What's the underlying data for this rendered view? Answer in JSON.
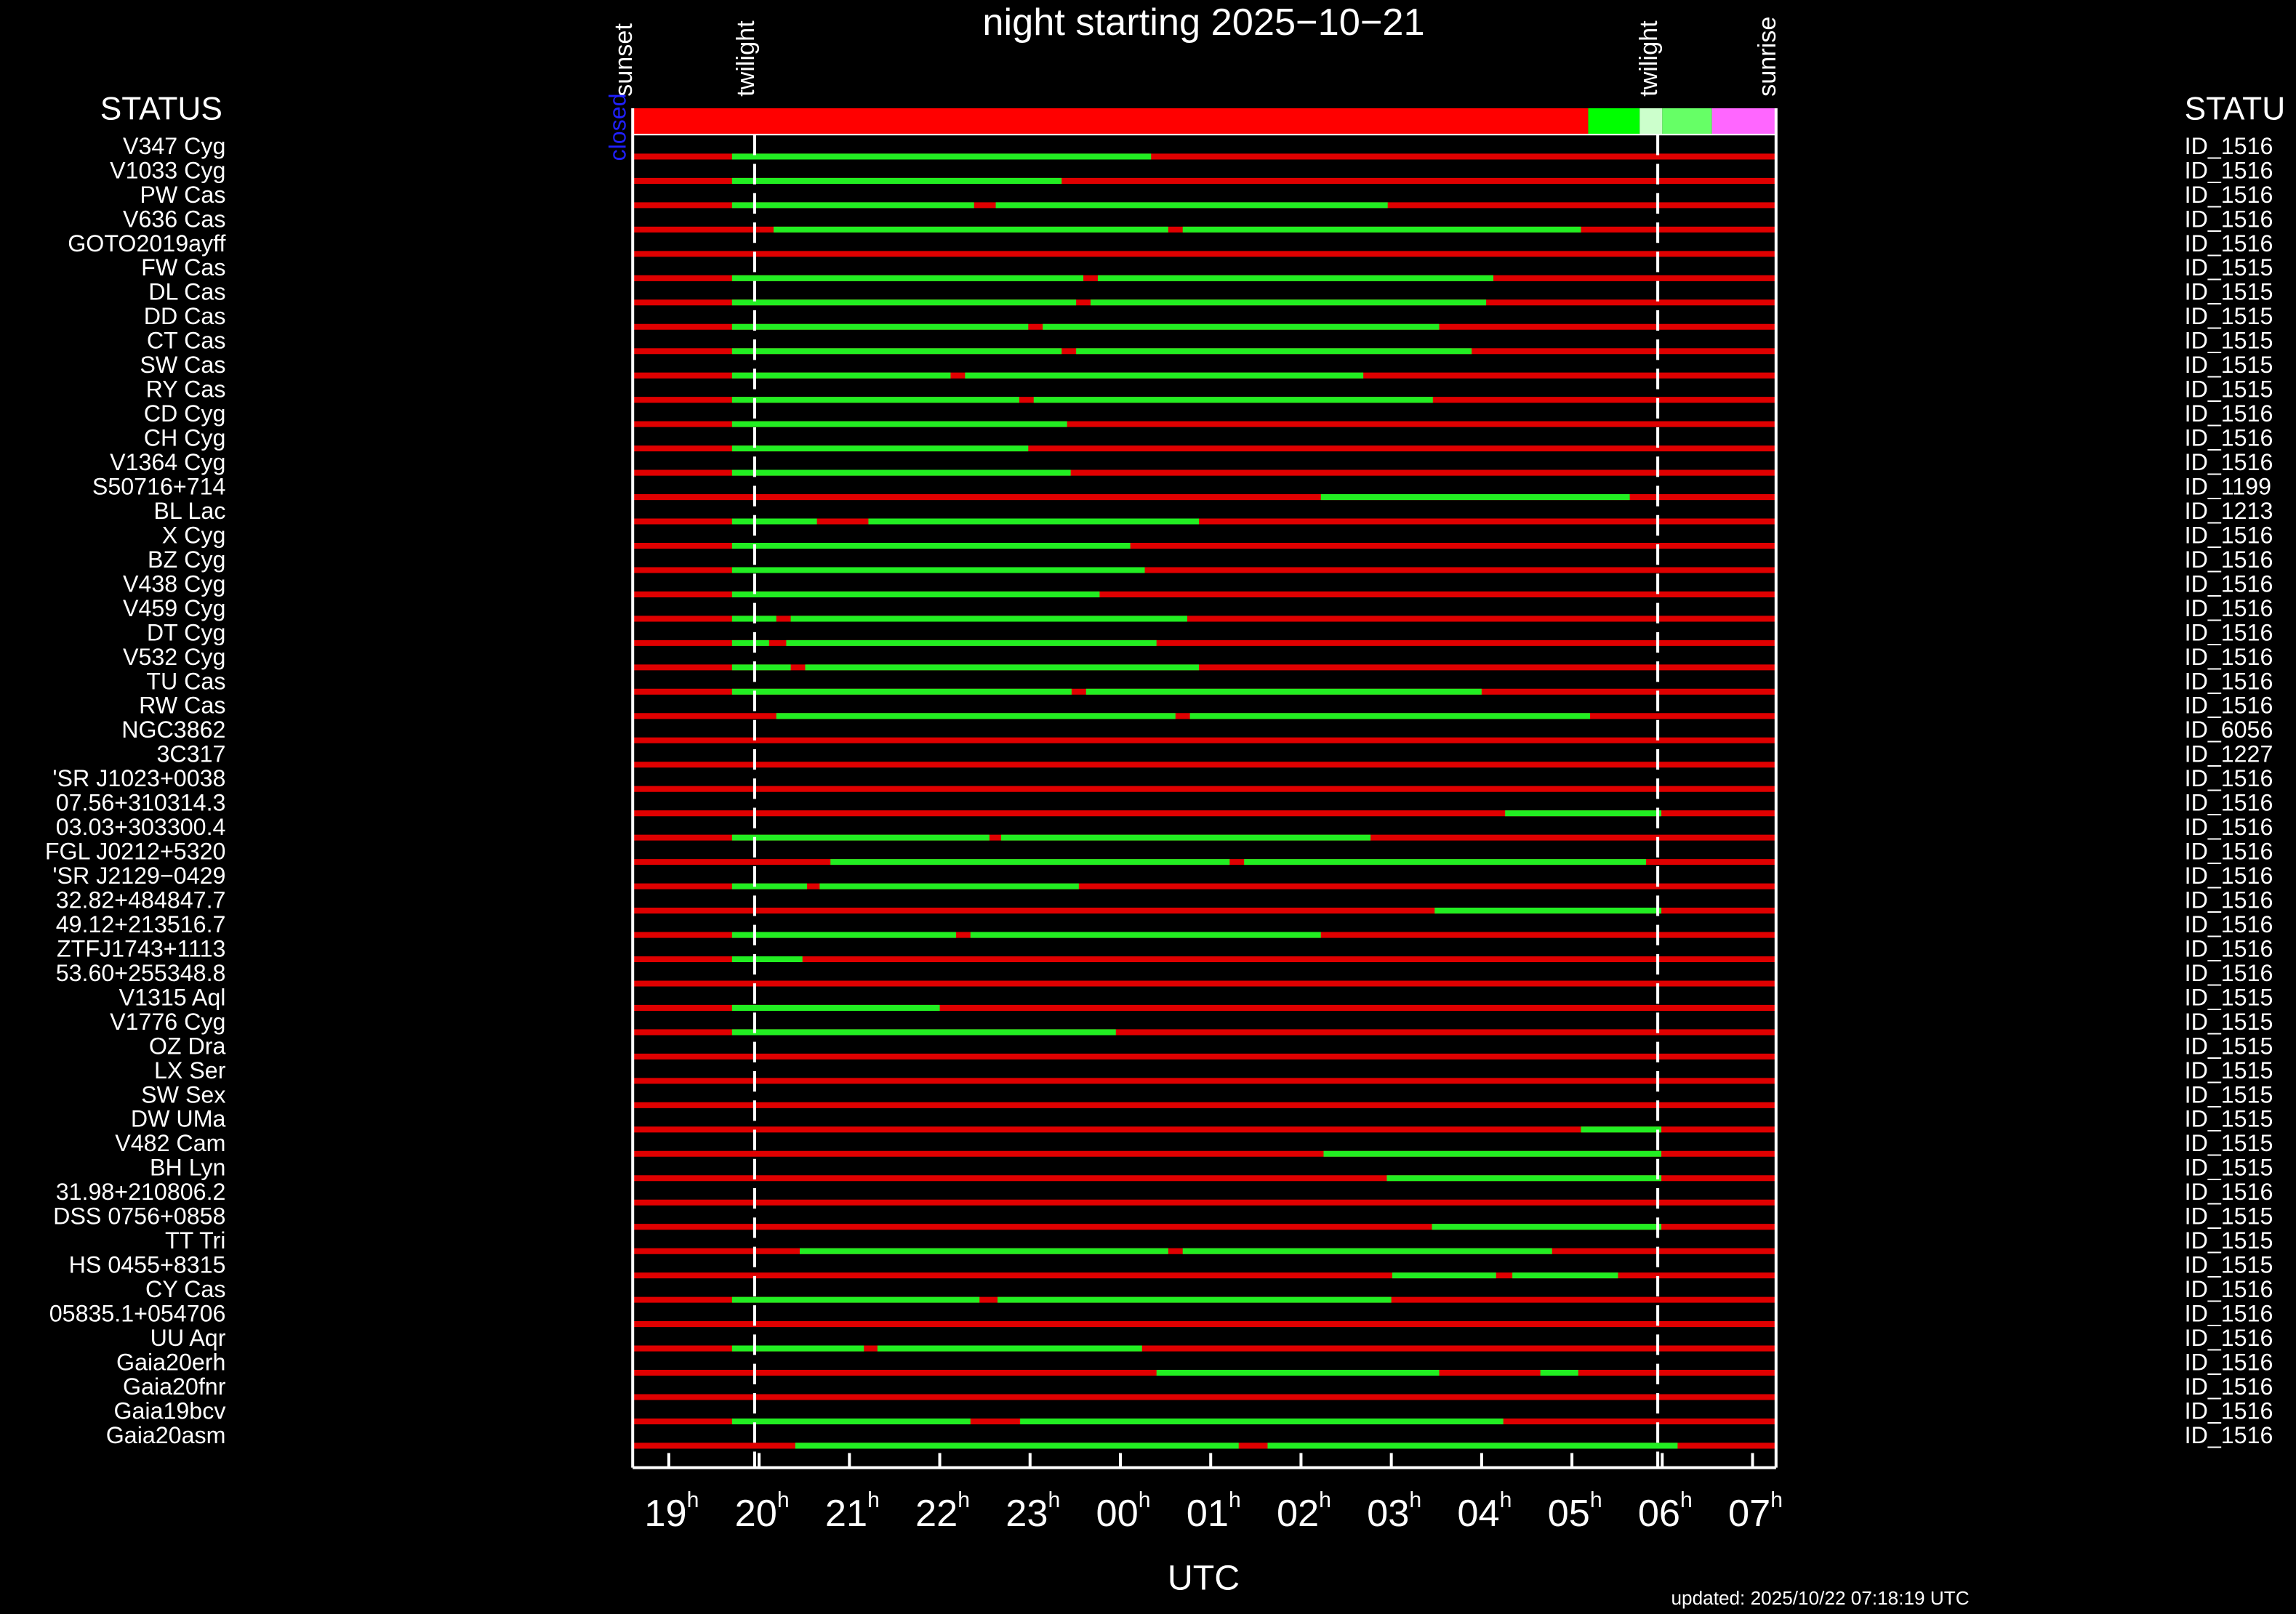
{
  "chart_data": {
    "type": "timeline",
    "title": "night starting 2025−10−21",
    "left_header": "STATUS",
    "right_header": "STATU",
    "x_label": "UTC",
    "footer": "updated: 2025/10/22 07:18:19 UTC",
    "xlim": [
      18.6,
      31.26
    ],
    "tick_suffix": "h",
    "xticks": [
      19,
      20,
      21,
      22,
      23,
      {
        "value": 24,
        "label": "00"
      },
      {
        "value": 25,
        "label": "01"
      },
      {
        "value": 26,
        "label": "02"
      },
      {
        "value": 27,
        "label": "03"
      },
      {
        "value": 28,
        "label": "04"
      },
      {
        "value": 29,
        "label": "05"
      },
      {
        "value": 30,
        "label": "06"
      },
      {
        "value": 31,
        "label": "07"
      }
    ],
    "events": [
      {
        "name": "sunset",
        "x": 18.6
      },
      {
        "name": "twilight",
        "x": 19.95
      },
      {
        "name": "twilight",
        "x": 29.95
      },
      {
        "name": "sunrise",
        "x": 31.26
      }
    ],
    "status_labels": [
      {
        "name": "closed",
        "x": 18.55
      }
    ],
    "status_bar": [
      {
        "start": 18.6,
        "end": 29.18,
        "color": "#ff0000"
      },
      {
        "start": 29.18,
        "end": 29.75,
        "color": "#00ff00"
      },
      {
        "start": 29.75,
        "end": 30.0,
        "color": "#ccffcc"
      },
      {
        "start": 30.0,
        "end": 30.55,
        "color": "#66ff66"
      },
      {
        "start": 30.55,
        "end": 31.26,
        "color": "#ff66ff"
      }
    ],
    "off_color": "#e00000",
    "on_color": "#22ee22",
    "rows": [
      {
        "name": "V347 Cyg",
        "id": "ID_1516",
        "green": [
          [
            19.7,
            24.34
          ]
        ]
      },
      {
        "name": "V1033 Cyg",
        "id": "ID_1516",
        "green": [
          [
            19.7,
            23.35
          ]
        ]
      },
      {
        "name": "PW Cas",
        "id": "ID_1516",
        "green": [
          [
            19.7,
            22.38
          ],
          [
            22.62,
            26.96
          ]
        ]
      },
      {
        "name": "V636 Cas",
        "id": "ID_1516",
        "green": [
          [
            20.16,
            24.53
          ],
          [
            24.69,
            29.1
          ]
        ]
      },
      {
        "name": "GOTO2019ayff",
        "id": "ID_1516",
        "green": []
      },
      {
        "name": "FW Cas",
        "id": "ID_1515",
        "green": [
          [
            19.7,
            23.59
          ],
          [
            23.75,
            28.13
          ]
        ]
      },
      {
        "name": "DL Cas",
        "id": "ID_1515",
        "green": [
          [
            19.7,
            23.51
          ],
          [
            23.67,
            28.05
          ]
        ]
      },
      {
        "name": "DD Cas",
        "id": "ID_1515",
        "green": [
          [
            19.7,
            22.98
          ],
          [
            23.14,
            27.53
          ]
        ]
      },
      {
        "name": "CT Cas",
        "id": "ID_1515",
        "green": [
          [
            19.7,
            23.35
          ],
          [
            23.51,
            27.89
          ]
        ]
      },
      {
        "name": "SW Cas",
        "id": "ID_1515",
        "green": [
          [
            19.7,
            22.12
          ],
          [
            22.28,
            26.69
          ]
        ]
      },
      {
        "name": "RY Cas",
        "id": "ID_1515",
        "green": [
          [
            19.7,
            22.88
          ],
          [
            23.04,
            27.46
          ]
        ]
      },
      {
        "name": "CD Cyg",
        "id": "ID_1516",
        "green": [
          [
            19.7,
            23.41
          ]
        ]
      },
      {
        "name": "CH Cyg",
        "id": "ID_1516",
        "green": [
          [
            19.7,
            22.98
          ]
        ]
      },
      {
        "name": "V1364 Cyg",
        "id": "ID_1516",
        "green": [
          [
            19.7,
            23.45
          ]
        ]
      },
      {
        "name": "S50716+714",
        "id": "ID_1199",
        "green": [
          [
            26.22,
            29.64
          ]
        ]
      },
      {
        "name": "BL Lac",
        "id": "ID_1213",
        "green": [
          [
            19.7,
            20.64
          ],
          [
            21.21,
            24.87
          ]
        ]
      },
      {
        "name": "X Cyg",
        "id": "ID_1516",
        "green": [
          [
            19.7,
            24.11
          ]
        ]
      },
      {
        "name": "BZ Cyg",
        "id": "ID_1516",
        "green": [
          [
            19.7,
            24.27
          ]
        ]
      },
      {
        "name": "V438 Cyg",
        "id": "ID_1516",
        "green": [
          [
            19.7,
            23.77
          ]
        ]
      },
      {
        "name": "V459 Cyg",
        "id": "ID_1516",
        "green": [
          [
            19.7,
            20.19
          ],
          [
            20.35,
            24.74
          ]
        ]
      },
      {
        "name": "DT Cyg",
        "id": "ID_1516",
        "green": [
          [
            19.7,
            20.11
          ],
          [
            20.3,
            24.4
          ]
        ]
      },
      {
        "name": "V532 Cyg",
        "id": "ID_1516",
        "green": [
          [
            19.7,
            20.35
          ],
          [
            20.51,
            24.87
          ]
        ]
      },
      {
        "name": "TU Cas",
        "id": "ID_1516",
        "green": [
          [
            19.7,
            23.46
          ],
          [
            23.62,
            28.0
          ]
        ]
      },
      {
        "name": "RW Cas",
        "id": "ID_1516",
        "green": [
          [
            20.19,
            24.61
          ],
          [
            24.77,
            29.2
          ]
        ]
      },
      {
        "name": "NGC3862",
        "id": "ID_6056",
        "green": []
      },
      {
        "name": "3C317",
        "id": "ID_1227",
        "green": []
      },
      {
        "name": "'SR J1023+0038",
        "id": "ID_1516",
        "green": []
      },
      {
        "name": "07.56+310314.3",
        "id": "ID_1516",
        "green": [
          [
            28.26,
            29.99
          ]
        ]
      },
      {
        "name": "03.03+303300.4",
        "id": "ID_1516",
        "green": [
          [
            19.7,
            22.55
          ],
          [
            22.68,
            26.77
          ]
        ]
      },
      {
        "name": "FGL J0212+5320",
        "id": "ID_1516",
        "green": [
          [
            20.79,
            25.21
          ],
          [
            25.37,
            29.82
          ]
        ]
      },
      {
        "name": "'SR J2129−0429",
        "id": "ID_1516",
        "green": [
          [
            19.7,
            20.53
          ],
          [
            20.67,
            23.54
          ]
        ]
      },
      {
        "name": "32.82+484847.7",
        "id": "ID_1516",
        "green": [
          [
            27.48,
            29.99
          ]
        ]
      },
      {
        "name": "49.12+213516.7",
        "id": "ID_1516",
        "green": [
          [
            19.7,
            22.18
          ],
          [
            22.34,
            26.22
          ]
        ]
      },
      {
        "name": "ZTFJ1743+1113",
        "id": "ID_1516",
        "green": [
          [
            19.7,
            20.48
          ]
        ]
      },
      {
        "name": "53.60+255348.8",
        "id": "ID_1516",
        "green": []
      },
      {
        "name": "V1315 Aql",
        "id": "ID_1515",
        "green": [
          [
            19.7,
            22.0
          ]
        ]
      },
      {
        "name": "V1776 Cyg",
        "id": "ID_1515",
        "green": [
          [
            19.7,
            23.95
          ]
        ]
      },
      {
        "name": "OZ Dra",
        "id": "ID_1515",
        "green": []
      },
      {
        "name": "LX Ser",
        "id": "ID_1515",
        "green": []
      },
      {
        "name": "SW Sex",
        "id": "ID_1515",
        "green": []
      },
      {
        "name": "DW UMa",
        "id": "ID_1515",
        "green": [
          [
            29.1,
            29.99
          ]
        ]
      },
      {
        "name": "V482 Cam",
        "id": "ID_1515",
        "green": [
          [
            26.25,
            29.99
          ]
        ]
      },
      {
        "name": "BH Lyn",
        "id": "ID_1515",
        "green": [
          [
            26.95,
            29.99
          ]
        ]
      },
      {
        "name": "31.98+210806.2",
        "id": "ID_1516",
        "green": []
      },
      {
        "name": "DSS 0756+0858",
        "id": "ID_1515",
        "green": [
          [
            27.45,
            29.99
          ]
        ]
      },
      {
        "name": "TT Tri",
        "id": "ID_1515",
        "green": [
          [
            20.45,
            24.53
          ],
          [
            24.69,
            28.78
          ]
        ]
      },
      {
        "name": "HS 0455+8315",
        "id": "ID_1515",
        "green": [
          [
            27.01,
            28.16
          ],
          [
            28.34,
            29.51
          ]
        ]
      },
      {
        "name": "CY Cas",
        "id": "ID_1516",
        "green": [
          [
            19.7,
            22.44
          ],
          [
            22.64,
            27.0
          ]
        ]
      },
      {
        "name": "05835.1+054706",
        "id": "ID_1516",
        "green": []
      },
      {
        "name": "UU Aqr",
        "id": "ID_1516",
        "green": [
          [
            19.7,
            21.16
          ],
          [
            21.31,
            24.24
          ]
        ]
      },
      {
        "name": "Gaia20erh",
        "id": "ID_1516",
        "green": [
          [
            24.4,
            27.53
          ],
          [
            28.65,
            29.07
          ]
        ]
      },
      {
        "name": "Gaia20fnr",
        "id": "ID_1516",
        "green": []
      },
      {
        "name": "Gaia19bcv",
        "id": "ID_1516",
        "green": [
          [
            19.7,
            22.34
          ],
          [
            22.89,
            28.24
          ]
        ]
      },
      {
        "name": "Gaia20asm",
        "id": "ID_1516",
        "green": [
          [
            20.4,
            25.31
          ],
          [
            25.63,
            30.17
          ]
        ]
      }
    ]
  }
}
